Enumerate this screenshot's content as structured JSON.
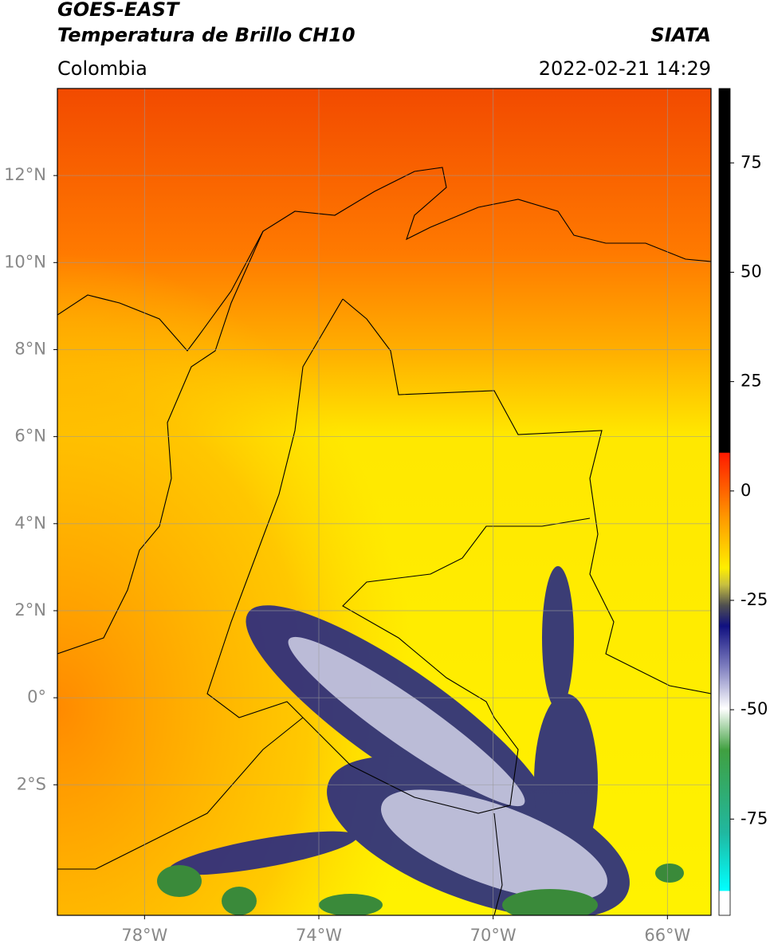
{
  "header": {
    "title": "GOES-EAST",
    "subtitle": "Temperatura de Brillo CH10",
    "region": "Colombia",
    "source": "SIATA",
    "datetime": "2022-02-21 14:29"
  },
  "map": {
    "xlim": [
      -80,
      -65
    ],
    "ylim": [
      -5,
      14
    ],
    "xticks": [
      {
        "value": -78,
        "label": "78°W"
      },
      {
        "value": -74,
        "label": "74°W"
      },
      {
        "value": -70,
        "label": "70°W"
      },
      {
        "value": -66,
        "label": "66°W"
      }
    ],
    "yticks": [
      {
        "value": 12,
        "label": "12°N"
      },
      {
        "value": 10,
        "label": "10°N"
      },
      {
        "value": 8,
        "label": "8°N"
      },
      {
        "value": 6,
        "label": "6°N"
      },
      {
        "value": 4,
        "label": "4°N"
      },
      {
        "value": 2,
        "label": "2°N"
      },
      {
        "value": 0,
        "label": "0°"
      },
      {
        "value": -2,
        "label": "2°S"
      }
    ]
  },
  "colorbar": {
    "lim": [
      -97,
      92
    ],
    "ticks": [
      75,
      50,
      25,
      0,
      -25,
      -50,
      -75
    ]
  }
}
